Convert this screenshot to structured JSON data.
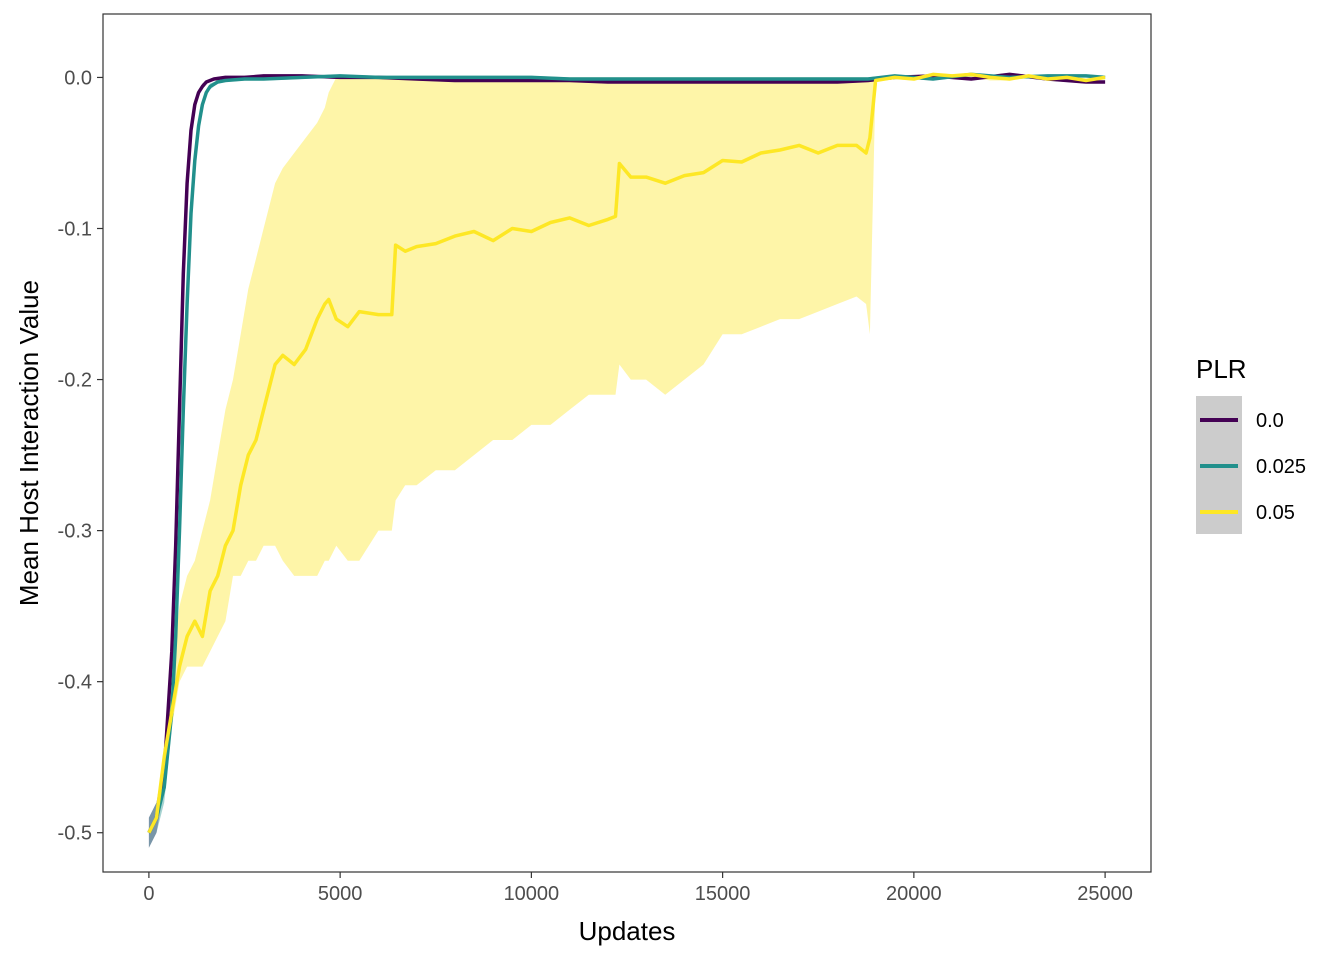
{
  "chart_data": {
    "type": "line",
    "xlabel": "Updates",
    "ylabel": "Mean Host Interaction Value",
    "xlim": [
      -1200,
      26200
    ],
    "ylim": [
      -0.526,
      0.042
    ],
    "x_ticks": [
      0,
      5000,
      10000,
      15000,
      20000,
      25000
    ],
    "x_tick_labels": [
      "0",
      "5000",
      "10000",
      "15000",
      "20000",
      "25000"
    ],
    "y_ticks": [
      -0.5,
      -0.4,
      -0.3,
      -0.2,
      -0.1,
      0.0
    ],
    "y_tick_labels": [
      "-0.5",
      "-0.4",
      "-0.3",
      "-0.2",
      "-0.1",
      "0.0"
    ],
    "grid": false,
    "legend": {
      "title": "PLR",
      "position": "right",
      "entries": [
        "0.0",
        "0.025",
        "0.05"
      ]
    },
    "series": [
      {
        "name": "0.0",
        "color": "#440154",
        "x": [
          0,
          200,
          400,
          600,
          700,
          800,
          900,
          1000,
          1100,
          1200,
          1300,
          1400,
          1500,
          1700,
          2000,
          2500,
          3000,
          4000,
          5000,
          6000,
          7000,
          8000,
          9000,
          10000,
          11000,
          12000,
          13000,
          14000,
          15000,
          16000,
          17000,
          18000,
          18800,
          19500,
          20500,
          21500,
          22500,
          23500,
          24500,
          25000
        ],
        "y": [
          -0.5,
          -0.49,
          -0.46,
          -0.38,
          -0.31,
          -0.22,
          -0.13,
          -0.07,
          -0.035,
          -0.018,
          -0.01,
          -0.006,
          -0.003,
          -0.001,
          0.0,
          0.0,
          0.001,
          0.001,
          0.0,
          0.0,
          -0.001,
          -0.002,
          -0.002,
          -0.002,
          -0.002,
          -0.003,
          -0.003,
          -0.003,
          -0.003,
          -0.003,
          -0.003,
          -0.003,
          -0.002,
          0.0,
          0.001,
          -0.001,
          0.002,
          -0.001,
          -0.003,
          -0.003
        ],
        "ci_lower": [
          -0.51,
          -0.5,
          -0.47,
          -0.39,
          -0.32,
          -0.23,
          -0.14,
          -0.075,
          -0.04,
          -0.021,
          -0.012,
          -0.008,
          -0.004,
          -0.002,
          -0.001,
          -0.001,
          0.0,
          0.0,
          -0.001,
          -0.001,
          -0.002,
          -0.003,
          -0.003,
          -0.003,
          -0.003,
          -0.004,
          -0.004,
          -0.004,
          -0.004,
          -0.004,
          -0.004,
          -0.004,
          -0.003,
          -0.001,
          0.0,
          -0.002,
          0.001,
          -0.002,
          -0.004,
          -0.004
        ],
        "ci_upper": [
          -0.49,
          -0.48,
          -0.45,
          -0.37,
          -0.3,
          -0.21,
          -0.12,
          -0.065,
          -0.03,
          -0.015,
          -0.008,
          -0.004,
          -0.002,
          0.0,
          0.001,
          0.001,
          0.002,
          0.002,
          0.001,
          0.001,
          0.0,
          -0.001,
          -0.001,
          -0.001,
          -0.001,
          -0.002,
          -0.002,
          -0.002,
          -0.002,
          -0.002,
          -0.002,
          -0.002,
          -0.001,
          0.001,
          0.002,
          0.0,
          0.003,
          0.0,
          -0.002,
          -0.002
        ]
      },
      {
        "name": "0.025",
        "color": "#21908C",
        "x": [
          0,
          200,
          400,
          600,
          700,
          800,
          900,
          1000,
          1100,
          1200,
          1300,
          1400,
          1500,
          1600,
          1800,
          2000,
          2500,
          3000,
          4000,
          5000,
          6000,
          7000,
          8000,
          9000,
          10000,
          11000,
          12000,
          13000,
          14000,
          15000,
          16000,
          17000,
          18000,
          18800,
          19500,
          20500,
          21500,
          22500,
          23500,
          24500,
          25000
        ],
        "y": [
          -0.5,
          -0.49,
          -0.47,
          -0.42,
          -0.37,
          -0.3,
          -0.22,
          -0.15,
          -0.09,
          -0.055,
          -0.032,
          -0.018,
          -0.01,
          -0.006,
          -0.003,
          -0.002,
          -0.001,
          -0.001,
          0.0,
          0.001,
          0.0,
          0.0,
          0.0,
          0.0,
          0.0,
          -0.001,
          -0.001,
          -0.001,
          -0.001,
          -0.001,
          -0.001,
          -0.001,
          -0.001,
          -0.001,
          0.001,
          -0.001,
          0.002,
          0.0,
          0.001,
          0.001,
          0.0
        ],
        "ci_lower": [
          -0.51,
          -0.5,
          -0.48,
          -0.43,
          -0.38,
          -0.31,
          -0.23,
          -0.16,
          -0.1,
          -0.06,
          -0.036,
          -0.021,
          -0.012,
          -0.008,
          -0.004,
          -0.003,
          -0.002,
          -0.002,
          -0.001,
          0.0,
          -0.001,
          -0.001,
          -0.001,
          -0.001,
          -0.001,
          -0.002,
          -0.002,
          -0.002,
          -0.002,
          -0.002,
          -0.002,
          -0.002,
          -0.002,
          -0.002,
          0.0,
          -0.002,
          0.001,
          -0.001,
          0.0,
          0.0,
          -0.001
        ],
        "ci_upper": [
          -0.49,
          -0.48,
          -0.46,
          -0.41,
          -0.36,
          -0.29,
          -0.21,
          -0.14,
          -0.08,
          -0.05,
          -0.028,
          -0.015,
          -0.008,
          -0.004,
          -0.002,
          -0.001,
          0.0,
          0.0,
          0.001,
          0.002,
          0.001,
          0.001,
          0.001,
          0.001,
          0.001,
          0.0,
          0.0,
          0.0,
          0.0,
          0.0,
          0.0,
          0.0,
          0.0,
          0.0,
          0.002,
          0.0,
          0.003,
          0.001,
          0.002,
          0.002,
          0.001
        ]
      },
      {
        "name": "0.05",
        "color": "#FDE725",
        "x": [
          0,
          200,
          400,
          600,
          800,
          1000,
          1200,
          1400,
          1600,
          1800,
          2000,
          2200,
          2400,
          2600,
          2800,
          3000,
          3300,
          3500,
          3800,
          4100,
          4400,
          4600,
          4700,
          4900,
          5200,
          5500,
          6000,
          6350,
          6450,
          6700,
          7000,
          7500,
          8000,
          8500,
          9000,
          9500,
          10000,
          10500,
          11000,
          11500,
          12000,
          12200,
          12300,
          12600,
          13000,
          13500,
          14000,
          14500,
          15000,
          15500,
          16000,
          16500,
          17000,
          17500,
          18000,
          18500,
          18750,
          18850,
          19000,
          19500,
          20000,
          20500,
          21000,
          21500,
          22000,
          22500,
          23000,
          23500,
          24000,
          24500,
          25000
        ],
        "y": [
          -0.5,
          -0.49,
          -0.45,
          -0.42,
          -0.39,
          -0.37,
          -0.36,
          -0.37,
          -0.34,
          -0.33,
          -0.31,
          -0.3,
          -0.27,
          -0.25,
          -0.24,
          -0.22,
          -0.19,
          -0.184,
          -0.19,
          -0.18,
          -0.16,
          -0.15,
          -0.147,
          -0.16,
          -0.165,
          -0.155,
          -0.157,
          -0.157,
          -0.111,
          -0.115,
          -0.112,
          -0.11,
          -0.105,
          -0.102,
          -0.108,
          -0.1,
          -0.102,
          -0.096,
          -0.093,
          -0.098,
          -0.094,
          -0.092,
          -0.057,
          -0.066,
          -0.066,
          -0.07,
          -0.065,
          -0.063,
          -0.055,
          -0.056,
          -0.05,
          -0.048,
          -0.045,
          -0.05,
          -0.045,
          -0.045,
          -0.05,
          -0.04,
          -0.002,
          0.0,
          -0.001,
          0.002,
          0.001,
          0.002,
          0.0,
          -0.001,
          0.001,
          -0.001,
          0.0,
          -0.002,
          0.0
        ],
        "ci_lower": [
          -0.5,
          -0.49,
          -0.46,
          -0.43,
          -0.4,
          -0.39,
          -0.39,
          -0.39,
          -0.38,
          -0.37,
          -0.36,
          -0.33,
          -0.33,
          -0.32,
          -0.32,
          -0.31,
          -0.31,
          -0.32,
          -0.33,
          -0.33,
          -0.33,
          -0.32,
          -0.32,
          -0.31,
          -0.32,
          -0.32,
          -0.3,
          -0.3,
          -0.28,
          -0.27,
          -0.27,
          -0.26,
          -0.26,
          -0.25,
          -0.24,
          -0.24,
          -0.23,
          -0.23,
          -0.22,
          -0.21,
          -0.21,
          -0.21,
          -0.19,
          -0.2,
          -0.2,
          -0.21,
          -0.2,
          -0.19,
          -0.17,
          -0.17,
          -0.165,
          -0.16,
          -0.16,
          -0.155,
          -0.15,
          -0.145,
          -0.15,
          -0.17,
          -0.002,
          -0.001,
          -0.002,
          0.0,
          0.0,
          0.0,
          -0.002,
          -0.002,
          0.0,
          -0.002,
          -0.001,
          -0.003,
          -0.001
        ],
        "ci_upper": [
          -0.5,
          -0.49,
          -0.44,
          -0.39,
          -0.35,
          -0.33,
          -0.32,
          -0.3,
          -0.28,
          -0.25,
          -0.22,
          -0.2,
          -0.17,
          -0.14,
          -0.12,
          -0.1,
          -0.07,
          -0.06,
          -0.05,
          -0.04,
          -0.03,
          -0.02,
          -0.01,
          0.0,
          0.0,
          0.0,
          0.0,
          0.0,
          0.0,
          0.0,
          0.0,
          0.0,
          0.0,
          0.0,
          0.0,
          0.0,
          0.0,
          0.0,
          0.0,
          0.0,
          0.0,
          0.0,
          0.0,
          0.0,
          0.0,
          0.0,
          0.0,
          0.0,
          0.0,
          0.0,
          0.0,
          0.0,
          0.0,
          0.0,
          0.0,
          0.0,
          0.0,
          0.0,
          0.0,
          0.001,
          0.0,
          0.003,
          0.002,
          0.003,
          0.001,
          0.0,
          0.002,
          0.0,
          0.001,
          -0.001,
          0.001
        ]
      }
    ]
  }
}
